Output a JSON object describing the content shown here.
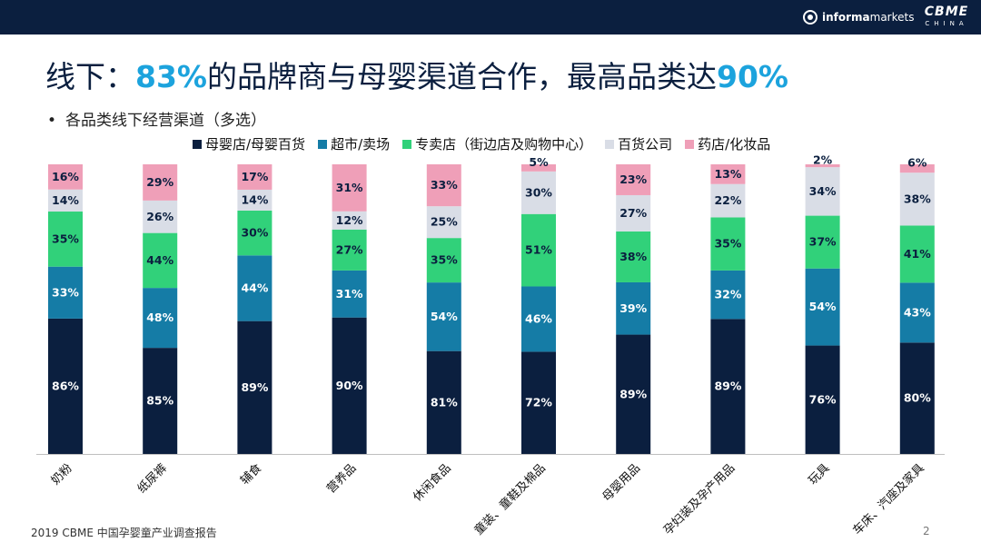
{
  "header": {
    "brand_informa_bold": "informa",
    "brand_informa_light": "markets",
    "brand_cbme": "CBME",
    "brand_cbme_sub": "CHINA"
  },
  "title": {
    "part1": "线下：",
    "hl1": "83%",
    "part2": "的品牌商与母婴渠道合作，最高品类达",
    "hl2": "90%"
  },
  "bullet": {
    "dot": "•",
    "text": "各品类线下经营渠道（多选）"
  },
  "legend": [
    {
      "label": "母婴店/母婴百货",
      "color": "#0b1f3f"
    },
    {
      "label": "超市/卖场",
      "color": "#157ca6"
    },
    {
      "label": "专卖店（街边店及购物中心）",
      "color": "#31d17a"
    },
    {
      "label": "百货公司",
      "color": "#d9dde6"
    },
    {
      "label": "药店/化妆品",
      "color": "#ef9fb8"
    }
  ],
  "chart_data": {
    "type": "bar",
    "stacked": true,
    "normalized": true,
    "categories": [
      "奶粉",
      "纸尿裤",
      "辅食",
      "营养品",
      "休闲食品",
      "童装、童鞋及棉品",
      "母婴用品",
      "孕妇装及孕产用品",
      "玩具",
      "车床、汽座及家具"
    ],
    "series": [
      {
        "name": "母婴店/母婴百货",
        "values": [
          86,
          85,
          89,
          90,
          81,
          72,
          89,
          89,
          76,
          80
        ]
      },
      {
        "name": "超市/卖场",
        "values": [
          33,
          48,
          44,
          31,
          54,
          46,
          39,
          32,
          54,
          43
        ]
      },
      {
        "name": "专卖店（街边店及购物中心）",
        "values": [
          35,
          44,
          30,
          27,
          35,
          51,
          38,
          35,
          37,
          41
        ]
      },
      {
        "name": "百货公司",
        "values": [
          14,
          26,
          14,
          12,
          25,
          30,
          27,
          22,
          34,
          38
        ]
      },
      {
        "name": "药店/化妆品",
        "values": [
          16,
          29,
          17,
          31,
          33,
          5,
          23,
          13,
          2,
          6
        ]
      }
    ],
    "value_suffix": "%",
    "legend_position": "top"
  },
  "footer": {
    "source": "2019 CBME 中国孕婴童产业调查报告",
    "page": "2"
  }
}
